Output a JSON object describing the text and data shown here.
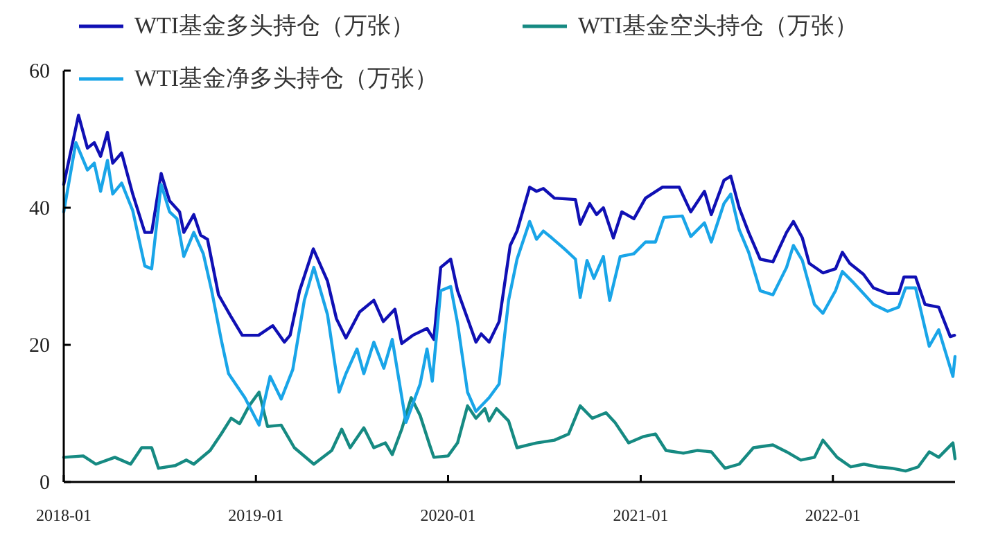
{
  "chart_data": {
    "type": "line",
    "xlim": [
      "2018-01-01",
      "2022-08-21"
    ],
    "xticks": [
      "2018-01",
      "2019-01",
      "2020-01",
      "2021-01",
      "2022-01"
    ],
    "ylim": [
      0,
      60
    ],
    "yticks": [
      0,
      20,
      40,
      60
    ],
    "legend": "top",
    "series": [
      {
        "name": "WTI基金多头持仓（万张）",
        "color": "#1010b4",
        "x": [
          "2018-01-01",
          "2018-01-29",
          "2018-02-15",
          "2018-02-28",
          "2018-03-12",
          "2018-03-25",
          "2018-04-04",
          "2018-04-21",
          "2018-05-12",
          "2018-06-04",
          "2018-06-17",
          "2018-07-05",
          "2018-07-21",
          "2018-08-09",
          "2018-08-17",
          "2018-09-05",
          "2018-09-18",
          "2018-10-01",
          "2018-10-22",
          "2018-11-14",
          "2018-12-06",
          "2019-01-06",
          "2019-02-02",
          "2019-02-24",
          "2019-03-07",
          "2019-03-25",
          "2019-04-20",
          "2019-05-17",
          "2019-06-03",
          "2019-06-21",
          "2019-07-17",
          "2019-08-13",
          "2019-08-31",
          "2019-09-22",
          "2019-10-05",
          "2019-10-26",
          "2019-11-22",
          "2019-12-05",
          "2019-12-18",
          "2020-01-06",
          "2020-01-19",
          "2020-02-23",
          "2020-03-04",
          "2020-03-19",
          "2020-04-07",
          "2020-04-28",
          "2020-05-11",
          "2020-06-04",
          "2020-06-17",
          "2020-06-30",
          "2020-07-21",
          "2020-08-30",
          "2020-09-08",
          "2020-09-26",
          "2020-10-09",
          "2020-10-22",
          "2020-11-10",
          "2020-11-26",
          "2020-12-19",
          "2021-01-10",
          "2021-02-11",
          "2021-03-15",
          "2021-04-06",
          "2021-05-02",
          "2021-05-15",
          "2021-06-08",
          "2021-06-21",
          "2021-07-07",
          "2021-07-25",
          "2021-08-16",
          "2021-09-09",
          "2021-10-05",
          "2021-10-18",
          "2021-11-04",
          "2021-11-17",
          "2021-12-13",
          "2022-01-06",
          "2022-01-19",
          "2022-02-02",
          "2022-02-28",
          "2022-03-19",
          "2022-04-15",
          "2022-05-06",
          "2022-05-16",
          "2022-06-07",
          "2022-06-25",
          "2022-07-21",
          "2022-08-12",
          "2022-08-20"
        ],
        "values": [
          43.4,
          53.5,
          48.7,
          49.5,
          47.5,
          51.0,
          46.5,
          48.0,
          42.0,
          36.4,
          36.4,
          45.0,
          41.0,
          39.4,
          36.4,
          39.0,
          36.0,
          35.4,
          27.3,
          24.2,
          21.4,
          21.4,
          22.8,
          20.4,
          21.4,
          27.9,
          34.0,
          29.3,
          23.8,
          21.0,
          24.8,
          26.5,
          23.4,
          25.2,
          20.2,
          21.4,
          22.4,
          20.8,
          31.3,
          32.5,
          27.9,
          20.4,
          21.6,
          20.4,
          23.4,
          34.5,
          36.6,
          43.0,
          42.4,
          42.8,
          41.4,
          41.2,
          37.6,
          40.6,
          39.0,
          40.0,
          35.6,
          39.4,
          38.4,
          41.4,
          43.0,
          43.0,
          39.4,
          42.4,
          39.0,
          44.0,
          44.6,
          40.0,
          36.4,
          32.5,
          32.1,
          36.4,
          38.0,
          35.6,
          31.9,
          30.5,
          31.1,
          33.5,
          31.9,
          30.3,
          28.3,
          27.5,
          27.5,
          29.9,
          29.9,
          25.9,
          25.5,
          21.2,
          21.4
        ]
      },
      {
        "name": "WTI基金空头持仓（万张）",
        "color": "#168a82",
        "x": [
          "2018-01-01",
          "2018-02-07",
          "2018-03-03",
          "2018-04-08",
          "2018-05-08",
          "2018-05-29",
          "2018-06-17",
          "2018-06-30",
          "2018-08-01",
          "2018-08-22",
          "2018-09-05",
          "2018-10-06",
          "2018-10-27",
          "2018-11-15",
          "2018-12-01",
          "2018-12-19",
          "2019-01-07",
          "2019-01-23",
          "2019-02-18",
          "2019-03-15",
          "2019-04-21",
          "2019-05-25",
          "2019-06-13",
          "2019-06-29",
          "2019-07-25",
          "2019-08-13",
          "2019-09-04",
          "2019-09-17",
          "2019-10-05",
          "2019-10-23",
          "2019-11-09",
          "2019-11-27",
          "2019-12-05",
          "2020-01-01",
          "2020-01-19",
          "2020-02-07",
          "2020-02-23",
          "2020-03-11",
          "2020-03-19",
          "2020-04-02",
          "2020-04-25",
          "2020-05-11",
          "2020-06-17",
          "2020-07-21",
          "2020-08-17",
          "2020-09-08",
          "2020-10-01",
          "2020-10-27",
          "2020-11-13",
          "2020-12-09",
          "2021-01-05",
          "2021-01-29",
          "2021-02-18",
          "2021-03-23",
          "2021-04-19",
          "2021-05-15",
          "2021-06-10",
          "2021-07-07",
          "2021-08-03",
          "2021-09-09",
          "2021-10-05",
          "2021-11-01",
          "2021-11-27",
          "2021-12-13",
          "2022-01-09",
          "2022-02-04",
          "2022-03-01",
          "2022-03-27",
          "2022-04-23",
          "2022-05-19",
          "2022-06-12",
          "2022-07-03",
          "2022-07-21",
          "2022-08-17",
          "2022-08-21"
        ],
        "values": [
          3.6,
          3.8,
          2.6,
          3.6,
          2.6,
          5.0,
          5.0,
          2.0,
          2.4,
          3.2,
          2.6,
          4.6,
          7.0,
          9.3,
          8.5,
          11.1,
          13.1,
          8.1,
          8.3,
          5.0,
          2.6,
          4.6,
          7.7,
          5.0,
          7.9,
          5.0,
          5.7,
          4.0,
          7.7,
          12.3,
          9.7,
          5.4,
          3.6,
          3.8,
          5.7,
          11.1,
          9.3,
          10.7,
          8.9,
          10.7,
          8.9,
          5.0,
          5.7,
          6.1,
          7.0,
          11.1,
          9.3,
          10.1,
          8.7,
          5.7,
          6.6,
          7.0,
          4.6,
          4.2,
          4.6,
          4.4,
          2.0,
          2.6,
          5.0,
          5.4,
          4.4,
          3.2,
          3.6,
          6.1,
          3.6,
          2.2,
          2.6,
          2.2,
          2.0,
          1.6,
          2.2,
          4.4,
          3.6,
          5.7,
          3.4
        ]
      },
      {
        "name": "WTI基金净多头持仓（万张）",
        "color": "#19a5e8",
        "x": [
          "2018-01-01",
          "2018-01-24",
          "2018-02-15",
          "2018-02-28",
          "2018-03-12",
          "2018-03-25",
          "2018-04-04",
          "2018-04-21",
          "2018-05-12",
          "2018-06-04",
          "2018-06-17",
          "2018-07-05",
          "2018-07-21",
          "2018-08-04",
          "2018-08-17",
          "2018-09-05",
          "2018-09-23",
          "2018-10-09",
          "2018-10-27",
          "2018-11-10",
          "2018-12-11",
          "2019-01-07",
          "2019-01-28",
          "2019-02-18",
          "2019-03-12",
          "2019-04-03",
          "2019-04-21",
          "2019-05-17",
          "2019-06-08",
          "2019-06-21",
          "2019-07-12",
          "2019-07-25",
          "2019-08-13",
          "2019-09-01",
          "2019-09-17",
          "2019-10-13",
          "2019-11-09",
          "2019-11-22",
          "2019-12-02",
          "2019-12-18",
          "2020-01-06",
          "2020-01-19",
          "2020-02-07",
          "2020-02-23",
          "2020-03-19",
          "2020-04-07",
          "2020-04-25",
          "2020-05-11",
          "2020-06-04",
          "2020-06-17",
          "2020-06-30",
          "2020-07-16",
          "2020-08-09",
          "2020-08-30",
          "2020-09-08",
          "2020-09-21",
          "2020-10-04",
          "2020-10-22",
          "2020-11-03",
          "2020-11-23",
          "2020-12-19",
          "2021-01-10",
          "2021-01-29",
          "2021-02-14",
          "2021-03-21",
          "2021-04-06",
          "2021-05-02",
          "2021-05-15",
          "2021-06-08",
          "2021-06-21",
          "2021-07-07",
          "2021-07-25",
          "2021-08-16",
          "2021-09-09",
          "2021-10-05",
          "2021-10-18",
          "2021-11-04",
          "2021-11-27",
          "2021-12-13",
          "2022-01-06",
          "2022-01-19",
          "2022-02-10",
          "2022-02-28",
          "2022-03-19",
          "2022-04-15",
          "2022-05-06",
          "2022-05-19",
          "2022-06-07",
          "2022-07-03",
          "2022-07-21",
          "2022-08-17",
          "2022-08-21"
        ],
        "values": [
          39.4,
          49.5,
          45.5,
          46.5,
          42.4,
          46.9,
          42.0,
          43.6,
          39.6,
          31.5,
          31.1,
          43.4,
          39.4,
          38.4,
          32.9,
          36.4,
          33.3,
          27.9,
          20.8,
          15.8,
          12.3,
          8.3,
          15.4,
          12.1,
          16.4,
          26.5,
          31.3,
          24.4,
          13.1,
          15.8,
          19.4,
          15.8,
          20.4,
          16.6,
          20.8,
          8.7,
          14.3,
          19.4,
          14.7,
          27.9,
          28.5,
          23.2,
          13.1,
          10.3,
          12.3,
          14.3,
          26.5,
          32.5,
          38.0,
          35.4,
          36.6,
          35.6,
          34.0,
          32.5,
          26.9,
          32.3,
          29.7,
          32.9,
          26.5,
          32.9,
          33.3,
          35.0,
          35.0,
          38.6,
          38.8,
          35.8,
          37.8,
          35.0,
          40.6,
          42.0,
          36.8,
          33.5,
          27.9,
          27.3,
          31.3,
          34.5,
          32.3,
          25.9,
          24.6,
          27.9,
          30.7,
          29.0,
          27.5,
          25.9,
          24.9,
          25.5,
          28.3,
          28.3,
          19.8,
          22.2,
          15.4,
          18.3
        ]
      }
    ]
  }
}
